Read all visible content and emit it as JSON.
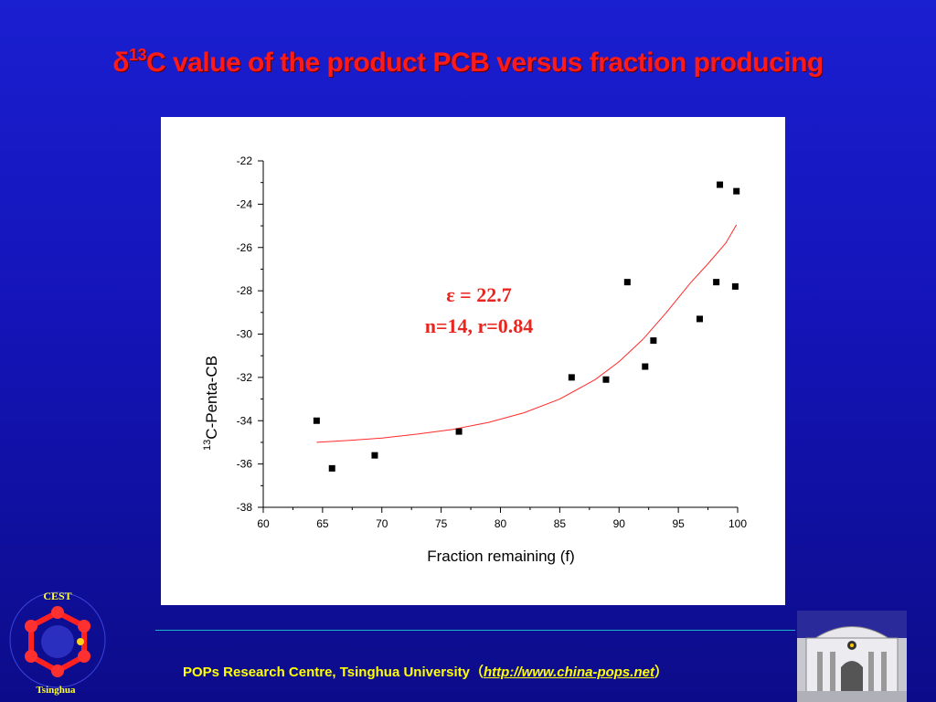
{
  "slide": {
    "title_prefix": "δ",
    "title_sup": "13",
    "title_rest": "C value of the product PCB versus fraction producing",
    "footer_org": "POPs Research Centre, Tsinghua University",
    "footer_open": "（",
    "footer_link": "http://www.china-pops.net",
    "footer_close": "）",
    "logo_left_top_text": "CEST",
    "logo_left_bottom_text": "Tsinghua"
  },
  "chart_data": {
    "type": "scatter",
    "title": "",
    "xlabel": "Fraction remaining (f)",
    "ylabel_sup": "13",
    "ylabel": "C-Penta-CB",
    "xlim": [
      60,
      100
    ],
    "ylim": [
      -38,
      -22
    ],
    "xticks": [
      60,
      65,
      70,
      75,
      80,
      85,
      90,
      95,
      100
    ],
    "yticks": [
      -22,
      -24,
      -26,
      -28,
      -30,
      -32,
      -34,
      -36,
      -38
    ],
    "annotation_line1": "ε = 22.7",
    "annotation_line2": "n=14, r=0.84",
    "grid": false,
    "colors": {
      "points": "#000000",
      "fit": "#ff2a2a",
      "annotation": "#e8261f",
      "title": "#ff1a1a",
      "footer": "#ffff00"
    },
    "series": [
      {
        "x": [
          64.5,
          65.8,
          69.4,
          76.5,
          86.0,
          88.9,
          90.7,
          92.2,
          92.9,
          96.8,
          98.2,
          98.5,
          99.8,
          99.9
        ],
        "y": [
          -34.0,
          -36.2,
          -35.6,
          -34.5,
          -32.0,
          -32.1,
          -27.6,
          -31.5,
          -30.3,
          -29.3,
          -27.6,
          -23.1,
          -27.8,
          -23.4
        ]
      }
    ],
    "fit": {
      "x": [
        64.5,
        67,
        70,
        73,
        76,
        79,
        82,
        85,
        88,
        90,
        92,
        94,
        96,
        97.5,
        99,
        99.9
      ],
      "y": [
        -35.0,
        -34.92,
        -34.8,
        -34.62,
        -34.4,
        -34.08,
        -33.63,
        -33.0,
        -32.1,
        -31.27,
        -30.25,
        -29.0,
        -27.65,
        -26.75,
        -25.8,
        -24.95
      ]
    }
  }
}
